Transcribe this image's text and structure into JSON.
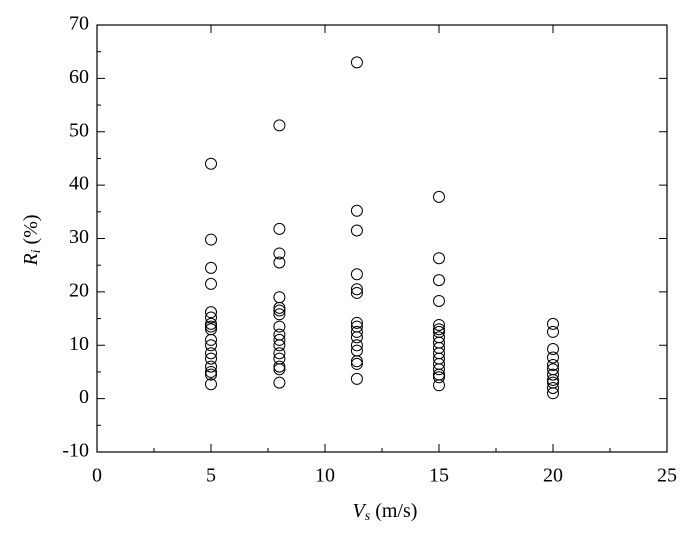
{
  "chart_data": {
    "type": "scatter",
    "x_label": {
      "symbol": "V",
      "subscript": "s",
      "unit": "(m/s)"
    },
    "y_label": {
      "symbol": "R",
      "subscript": "i",
      "unit": "(%)"
    },
    "x": [
      5,
      5,
      5,
      5,
      5,
      5,
      5,
      5,
      5,
      5,
      5,
      5,
      5,
      5,
      5,
      5,
      5,
      8,
      8,
      8,
      8,
      8,
      8,
      8,
      8,
      8,
      8,
      8,
      8,
      8,
      8,
      8,
      8,
      8,
      11.4,
      11.4,
      11.4,
      11.4,
      11.4,
      11.4,
      11.4,
      11.4,
      11.4,
      11.4,
      11.4,
      11.4,
      11.4,
      11.4,
      11.4,
      15,
      15,
      15,
      15,
      15,
      15,
      15,
      15,
      15,
      15,
      15,
      15,
      15,
      15,
      15,
      15,
      15,
      20,
      20,
      20,
      20,
      20,
      20,
      20,
      20,
      20,
      20,
      20
    ],
    "values": [
      44,
      29.8,
      24.5,
      21.5,
      16.2,
      15.2,
      14,
      13.5,
      13,
      11,
      10,
      8.5,
      7.5,
      6,
      5,
      4.5,
      2.7,
      51.2,
      31.8,
      27.2,
      25.5,
      19,
      17,
      16.5,
      15.8,
      13.5,
      12,
      11,
      10,
      8.5,
      7.5,
      6,
      5.5,
      3,
      63,
      35.2,
      31.5,
      23.3,
      20.5,
      19.8,
      14.2,
      13.5,
      12.5,
      11.5,
      10,
      9,
      7,
      6.5,
      3.7,
      37.8,
      26.3,
      22.2,
      18.3,
      13.8,
      13,
      12.5,
      11.5,
      10.5,
      9.5,
      8.5,
      7.5,
      6.5,
      5.5,
      4.5,
      4,
      2.5,
      14,
      12.5,
      9.3,
      7.7,
      6.3,
      5.5,
      4.5,
      3.5,
      3,
      2,
      1
    ],
    "marker_color": "#000000",
    "xlim": [
      0,
      25
    ],
    "xticks": [
      0,
      5,
      10,
      15,
      20,
      25
    ],
    "ylim": [
      -10,
      70
    ],
    "yticks": [
      -10,
      0,
      10,
      20,
      30,
      40,
      50,
      60,
      70
    ]
  }
}
